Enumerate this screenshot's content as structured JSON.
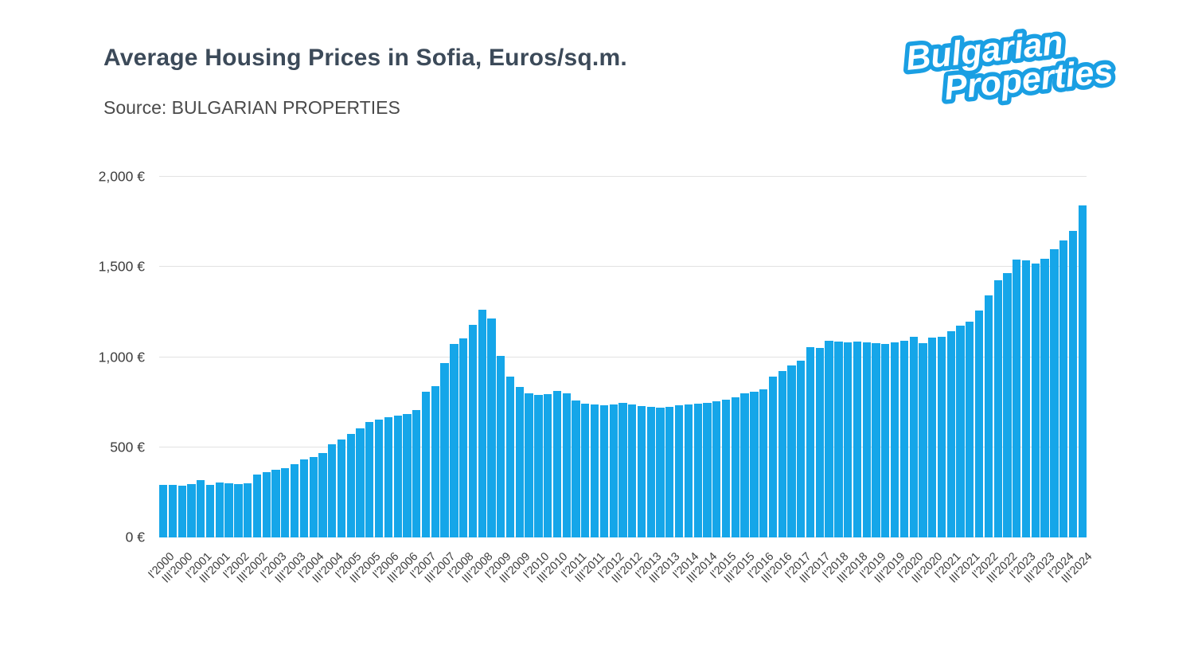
{
  "header": {
    "title": "Average Housing Prices in Sofia, Euros/sq.m.",
    "source": "Source: BULGARIAN PROPERTIES"
  },
  "logo": {
    "line1": "Bulgarian",
    "line2": "Properties",
    "color": "#1A9FE3"
  },
  "chart_data": {
    "type": "bar",
    "title": "Average Housing Prices in Sofia, Euros/sq.m.",
    "subtitle": "Source: BULGARIAN PROPERTIES",
    "unit": "EUR per sq.m.",
    "bar_color": "#15A6E9",
    "grid_color": "#E2E2E2",
    "grid": true,
    "legend": false,
    "ylim": [
      0,
      2000
    ],
    "y_ticks": [
      {
        "value": 0,
        "label": "0 €"
      },
      {
        "value": 500,
        "label": "500 €"
      },
      {
        "value": 1000,
        "label": "1,000 €"
      },
      {
        "value": 1500,
        "label": "1,500 €"
      },
      {
        "value": 2000,
        "label": "2,000 €"
      }
    ],
    "label_every_n_bars": 2,
    "x_tick_labels": [
      "I'2000",
      "III'2000",
      "I'2001",
      "III'2001",
      "I'2002",
      "III'2002",
      "I'2003",
      "III'2003",
      "I'2004",
      "III'2004",
      "I'2005",
      "III'2005",
      "I'2006",
      "III'2006",
      "I'2007",
      "III'2007",
      "I'2008",
      "III'2008",
      "I'2009",
      "III'2009",
      "I'2010",
      "III'2010",
      "I'2011",
      "III'2011",
      "I'2012",
      "III'2012",
      "I'2013",
      "III'2013",
      "I'2014",
      "III'2014",
      "I'2015",
      "III'2015",
      "I'2016",
      "III'2016",
      "I'2017",
      "III'2017",
      "I'2018",
      "III'2018",
      "I'2019",
      "III'2019",
      "I'2020",
      "III'2020",
      "I'2021",
      "III'2021",
      "I'2022",
      "III'2022",
      "I'2023",
      "III'2023",
      "I'2024",
      "III'2024"
    ],
    "values": [
      292,
      291,
      285,
      298,
      320,
      290,
      303,
      300,
      297,
      300,
      348,
      363,
      375,
      385,
      405,
      432,
      448,
      470,
      515,
      545,
      575,
      605,
      640,
      655,
      665,
      675,
      685,
      705,
      810,
      838,
      968,
      1075,
      1105,
      1180,
      1264,
      1212,
      1008,
      890,
      835,
      800,
      789,
      793,
      812,
      800,
      760,
      743,
      738,
      735,
      736,
      745,
      738,
      730,
      726,
      718,
      723,
      731,
      738,
      742,
      748,
      757,
      765,
      778,
      798,
      806,
      822,
      893,
      922,
      954,
      980,
      1056,
      1052,
      1090,
      1087,
      1081,
      1086,
      1081,
      1076,
      1074,
      1083,
      1090,
      1113,
      1077,
      1110,
      1114,
      1145,
      1175,
      1196,
      1257,
      1341,
      1425,
      1467,
      1543,
      1538,
      1517,
      1546,
      1597,
      1646,
      1700,
      1840
    ]
  }
}
